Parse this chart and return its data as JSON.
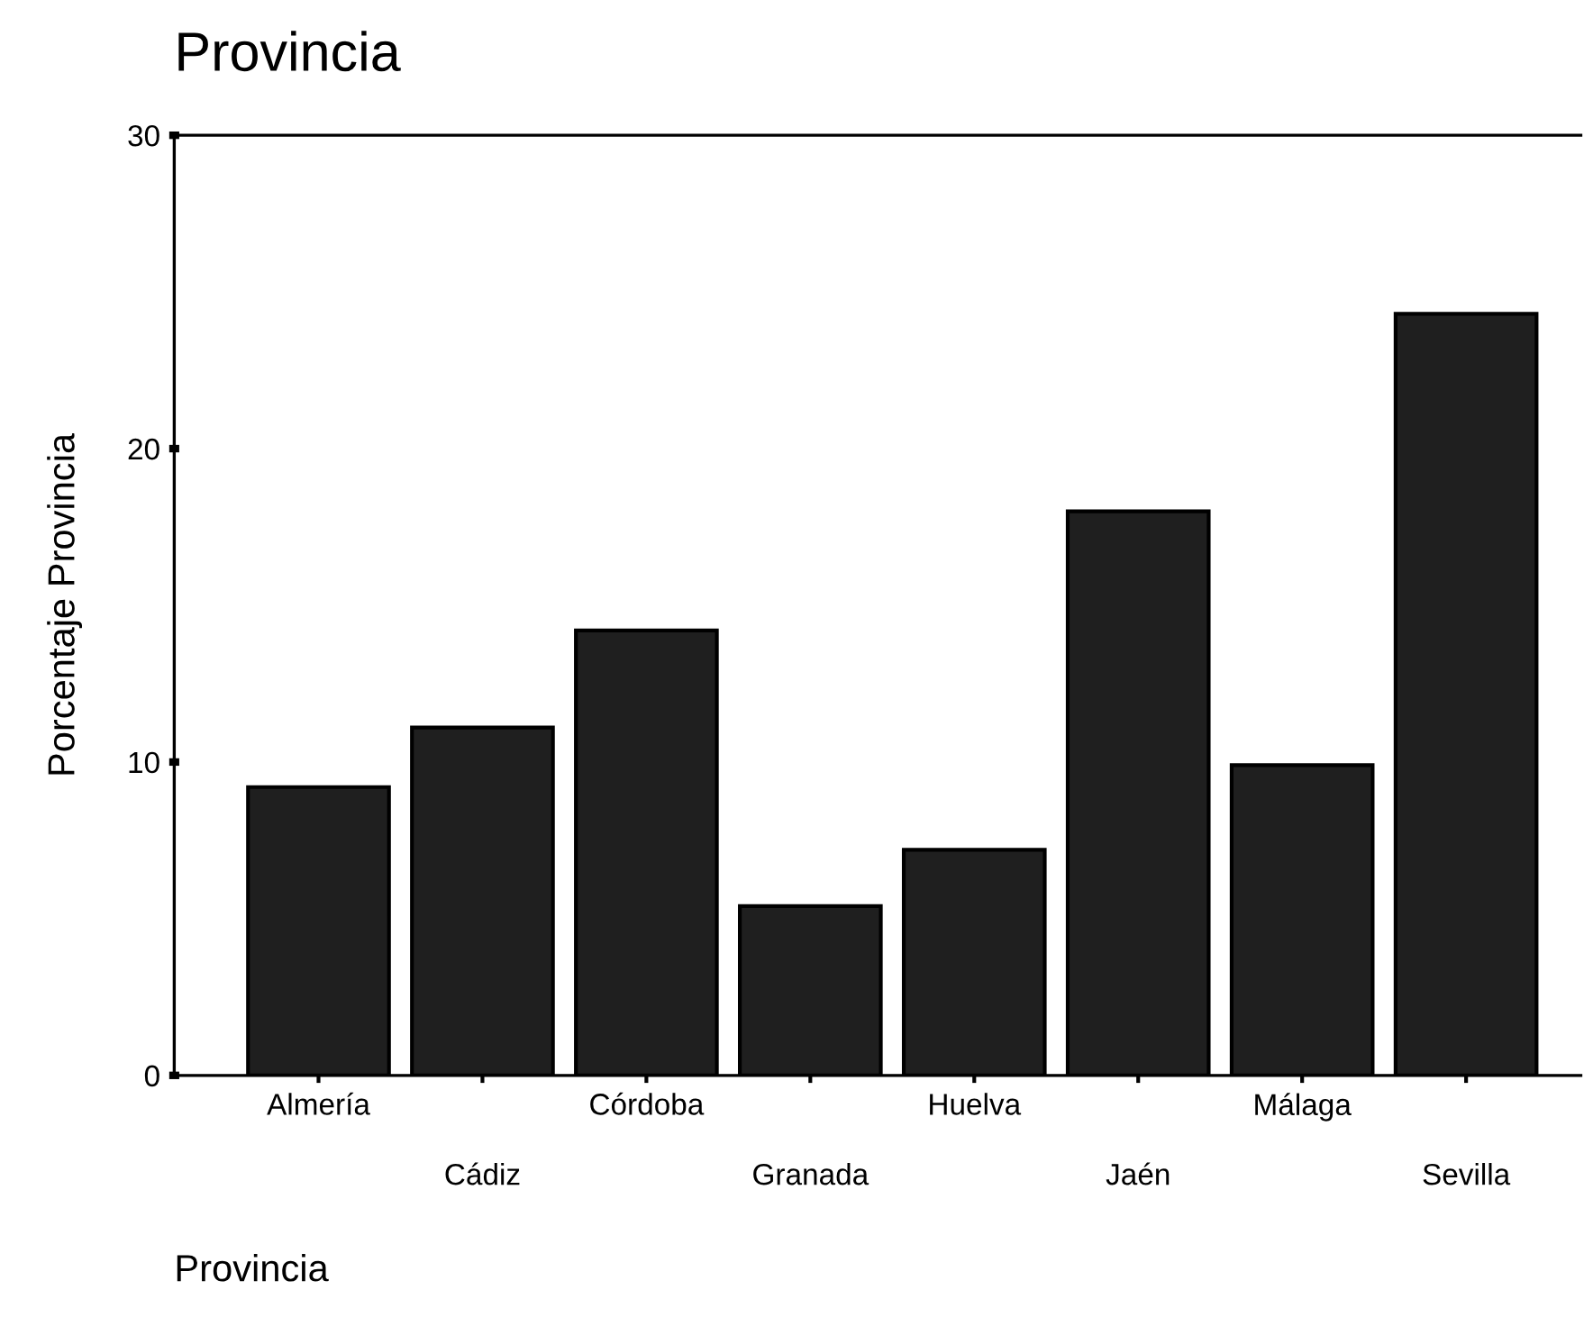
{
  "chart_data": {
    "type": "bar",
    "title": "Provincia",
    "xlabel": "Provincia",
    "ylabel": "Porcentaje Provincia",
    "categories": [
      "Almería",
      "Cádiz",
      "Córdoba",
      "Granada",
      "Huelva",
      "Jaén",
      "Málaga",
      "Sevilla"
    ],
    "values": [
      9.2,
      11.1,
      14.2,
      5.4,
      7.2,
      18.0,
      9.9,
      24.3
    ],
    "color": "#1f1f1f",
    "ylim": [
      0,
      30
    ],
    "yticks": [
      0,
      10,
      20,
      30
    ],
    "grid": false,
    "legend": false
  }
}
